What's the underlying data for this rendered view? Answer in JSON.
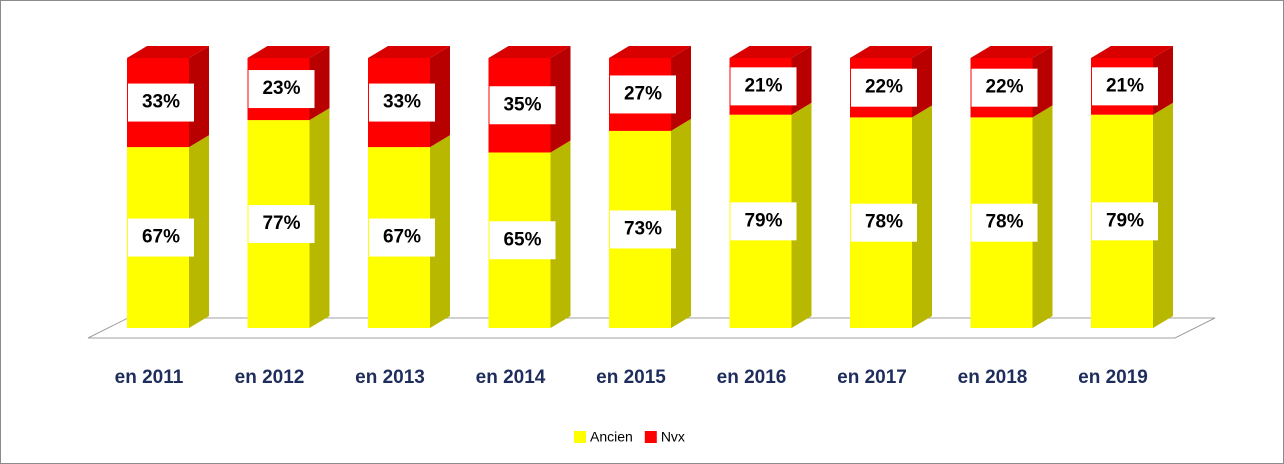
{
  "chart_data": {
    "type": "bar",
    "stacked": true,
    "categories": [
      "en 2011",
      "en 2012",
      "en 2013",
      "en 2014",
      "en 2015",
      "en 2016",
      "en 2017",
      "en 2018",
      "en 2019"
    ],
    "series": [
      {
        "name": "Ancien",
        "color": "#ffff00",
        "values": [
          67,
          77,
          67,
          65,
          73,
          79,
          78,
          78,
          79
        ],
        "value_labels": [
          "67%",
          "77%",
          "67%",
          "65%",
          "73%",
          "79%",
          "78%",
          "78%",
          "79%"
        ]
      },
      {
        "name": "Nvx",
        "color": "#ff0000",
        "values": [
          33,
          23,
          33,
          35,
          27,
          21,
          22,
          22,
          21
        ],
        "value_labels": [
          "33%",
          "23%",
          "33%",
          "35%",
          "27%",
          "21%",
          "22%",
          "22%",
          "21%"
        ]
      }
    ],
    "legend": "bottom"
  }
}
